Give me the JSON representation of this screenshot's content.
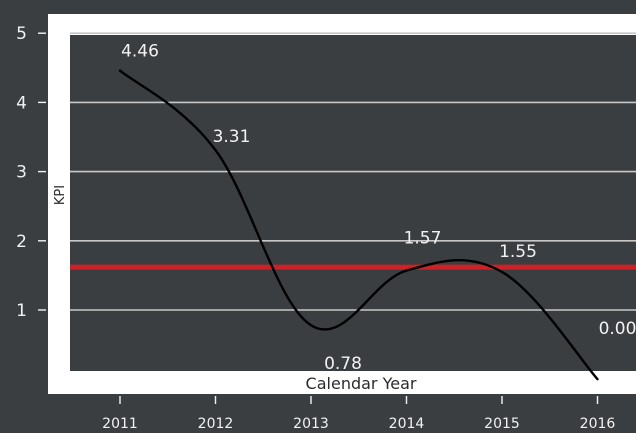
{
  "chart_data": {
    "type": "line",
    "title": "",
    "xlabel": "Calendar Year",
    "ylabel": "KPI",
    "x": [
      "2011",
      "2012",
      "2013",
      "2014",
      "2015",
      "2016"
    ],
    "series": [
      {
        "values": [
          4.46,
          3.31,
          0.78,
          1.57,
          1.55,
          0.0
        ],
        "data_labels": [
          "4.46",
          "3.31",
          "0.78",
          "1.57",
          "1.55",
          "0.00"
        ]
      }
    ],
    "reference_line": {
      "value": 1.62,
      "color": "#cc2127"
    },
    "ylim": [
      0,
      5
    ],
    "y_ticks": [
      "1",
      "2",
      "3",
      "4",
      "5"
    ],
    "grid": true,
    "legend": "none",
    "colors": {
      "background": "#3b3e40",
      "frame": "#ffffff",
      "panel": "#3b3e40",
      "grid": "#c8c8c8",
      "line": "#000000",
      "reference": "#cc2127",
      "text": "#f2f2f2",
      "axis_title": "#2b2b2b"
    }
  }
}
